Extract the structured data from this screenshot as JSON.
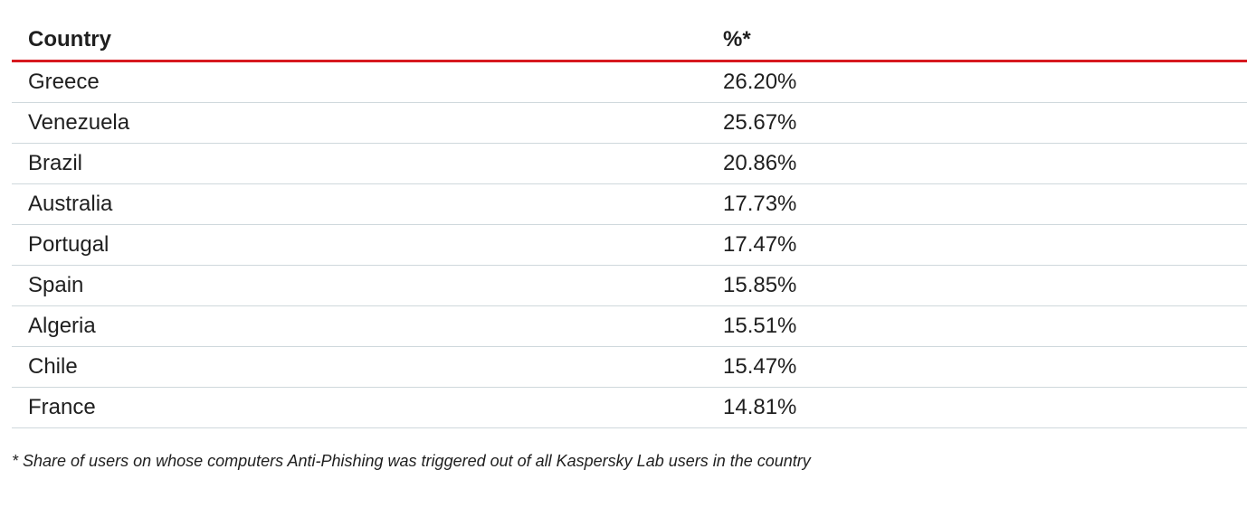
{
  "table": {
    "headers": {
      "country": "Country",
      "percent": "%*"
    },
    "rows": [
      {
        "country": "Greece",
        "percent": "26.20%"
      },
      {
        "country": "Venezuela",
        "percent": "25.67%"
      },
      {
        "country": "Brazil",
        "percent": "20.86%"
      },
      {
        "country": "Australia",
        "percent": "17.73%"
      },
      {
        "country": "Portugal",
        "percent": "17.47%"
      },
      {
        "country": "Spain",
        "percent": "15.85%"
      },
      {
        "country": "Algeria",
        "percent": "15.51%"
      },
      {
        "country": "Chile",
        "percent": "15.47%"
      },
      {
        "country": "France",
        "percent": "14.81%"
      }
    ]
  },
  "footnote": "* Share of users on whose computers Anti-Phishing was triggered out of all Kaspersky Lab users in the country",
  "colors": {
    "accent_rule": "#d7191f",
    "row_divider": "#cfd8dc"
  }
}
